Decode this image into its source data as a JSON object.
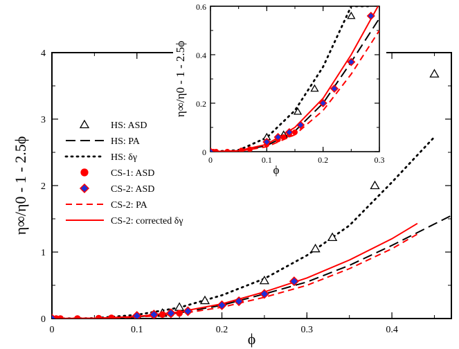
{
  "chart_data": [
    {
      "type": "line",
      "xlabel": "ϕ",
      "ylabel": "η∞/η0 - 1 - 2.5ϕ",
      "xlim": [
        0,
        0.47
      ],
      "ylim": [
        0,
        4
      ],
      "xticks": [
        "0",
        "0.1",
        "0.2",
        "0.3",
        "0.4"
      ],
      "yticks": [
        "0",
        "1",
        "2",
        "3",
        "4"
      ],
      "legend_position": "upper-left",
      "series": [
        {
          "name": "HS: ASD",
          "marker": "open-triangle",
          "color": "#000000",
          "x": [
            0.1,
            0.13,
            0.15,
            0.18,
            0.25,
            0.31,
            0.33,
            0.38,
            0.45
          ],
          "y": [
            0.03,
            0.08,
            0.17,
            0.27,
            0.57,
            1.05,
            1.22,
            2.0,
            3.68
          ]
        },
        {
          "name": "HS: PA",
          "line": "long-dash",
          "color": "#000000",
          "x": [
            0,
            0.05,
            0.1,
            0.15,
            0.2,
            0.25,
            0.3,
            0.35,
            0.4,
            0.47
          ],
          "y": [
            0,
            0.003,
            0.025,
            0.085,
            0.2,
            0.37,
            0.55,
            0.8,
            1.1,
            1.55
          ]
        },
        {
          "name": "HS: δγ",
          "line": "dotted",
          "color": "#000000",
          "x": [
            0,
            0.05,
            0.1,
            0.15,
            0.2,
            0.25,
            0.3,
            0.35,
            0.4,
            0.45
          ],
          "y": [
            0,
            0.005,
            0.055,
            0.165,
            0.35,
            0.6,
            0.95,
            1.4,
            2.05,
            2.73
          ]
        },
        {
          "name": "CS-1: ASD",
          "marker": "filled-circle",
          "color": "#ff0000",
          "x": [
            0.0,
            0.005,
            0.01,
            0.03,
            0.055,
            0.07,
            0.1,
            0.12,
            0.13,
            0.14,
            0.15
          ],
          "y": [
            0.0,
            0.0,
            0.0,
            0.0,
            0.005,
            0.01,
            0.03,
            0.05,
            0.06,
            0.07,
            0.08
          ]
        },
        {
          "name": "CS-2: ASD",
          "marker": "filled-diamond",
          "color": "#1f2fd6",
          "edge_color": "#ff0000",
          "x": [
            0.0,
            0.1,
            0.12,
            0.14,
            0.16,
            0.2,
            0.22,
            0.25,
            0.285
          ],
          "y": [
            0.0,
            0.04,
            0.06,
            0.08,
            0.11,
            0.2,
            0.26,
            0.37,
            0.56
          ]
        },
        {
          "name": "CS-2: PA",
          "line": "dashed",
          "color": "#ff0000",
          "x": [
            0,
            0.05,
            0.1,
            0.15,
            0.2,
            0.25,
            0.3,
            0.35,
            0.4,
            0.43
          ],
          "y": [
            0,
            0.002,
            0.02,
            0.07,
            0.17,
            0.32,
            0.5,
            0.75,
            1.05,
            1.27
          ]
        },
        {
          "name": "CS-2: corrected δγ",
          "line": "solid",
          "color": "#ff0000",
          "x": [
            0,
            0.05,
            0.1,
            0.15,
            0.2,
            0.25,
            0.3,
            0.35,
            0.4,
            0.43
          ],
          "y": [
            0,
            0.004,
            0.03,
            0.1,
            0.22,
            0.4,
            0.61,
            0.88,
            1.2,
            1.43
          ]
        }
      ]
    },
    {
      "type": "line",
      "xlabel": "ϕ",
      "ylabel": "η∞/η0 - 1 - 2.5ϕ",
      "xlim": [
        0,
        0.3
      ],
      "ylim": [
        0,
        0.6
      ],
      "xticks": [
        "0",
        "0.1",
        "0.2",
        "0.3"
      ],
      "yticks": [
        "0",
        "0.2",
        "0.4",
        "0.6"
      ],
      "position": "inset top-right",
      "series": [
        {
          "name": "HS: ASD",
          "marker": "open-triangle",
          "color": "#000000",
          "x": [
            0.1,
            0.13,
            0.155,
            0.185,
            0.25
          ],
          "y": [
            0.06,
            0.07,
            0.165,
            0.26,
            0.56
          ]
        },
        {
          "name": "HS: PA",
          "line": "long-dash",
          "color": "#000000",
          "x": [
            0,
            0.05,
            0.1,
            0.15,
            0.2,
            0.25,
            0.3
          ],
          "y": [
            0,
            0.003,
            0.025,
            0.085,
            0.2,
            0.37,
            0.55
          ]
        },
        {
          "name": "HS: δγ",
          "line": "dotted",
          "color": "#000000",
          "x": [
            0,
            0.05,
            0.1,
            0.15,
            0.2,
            0.25,
            0.28
          ],
          "y": [
            0,
            0.006,
            0.058,
            0.17,
            0.35,
            0.6,
            0.6
          ]
        },
        {
          "name": "CS-1: ASD",
          "marker": "filled-circle",
          "color": "#ff0000",
          "x": [
            0.0,
            0.005,
            0.01,
            0.03,
            0.055,
            0.07,
            0.1,
            0.12,
            0.13,
            0.14,
            0.15
          ],
          "y": [
            0.0,
            0.0,
            0.0,
            0.0,
            0.005,
            0.01,
            0.03,
            0.05,
            0.06,
            0.07,
            0.08
          ]
        },
        {
          "name": "CS-2: ASD",
          "marker": "filled-diamond",
          "color": "#1f2fd6",
          "edge_color": "#ff0000",
          "x": [
            0.0,
            0.1,
            0.12,
            0.14,
            0.16,
            0.2,
            0.22,
            0.25,
            0.285
          ],
          "y": [
            0.0,
            0.04,
            0.06,
            0.08,
            0.11,
            0.2,
            0.26,
            0.37,
            0.56
          ]
        },
        {
          "name": "CS-2: PA",
          "line": "dashed",
          "color": "#ff0000",
          "x": [
            0,
            0.05,
            0.1,
            0.15,
            0.2,
            0.25,
            0.3
          ],
          "y": [
            0,
            0.002,
            0.02,
            0.07,
            0.17,
            0.32,
            0.5
          ]
        },
        {
          "name": "CS-2: corrected δγ",
          "line": "solid",
          "color": "#ff0000",
          "x": [
            0,
            0.05,
            0.1,
            0.15,
            0.2,
            0.25,
            0.3
          ],
          "y": [
            0,
            0.004,
            0.03,
            0.1,
            0.22,
            0.4,
            0.61
          ]
        }
      ]
    }
  ],
  "legend": [
    "HS: ASD",
    "HS: PA",
    "HS: δγ",
    "CS-1: ASD",
    "CS-2: ASD",
    "CS-2: PA",
    "CS-2: corrected δγ"
  ]
}
